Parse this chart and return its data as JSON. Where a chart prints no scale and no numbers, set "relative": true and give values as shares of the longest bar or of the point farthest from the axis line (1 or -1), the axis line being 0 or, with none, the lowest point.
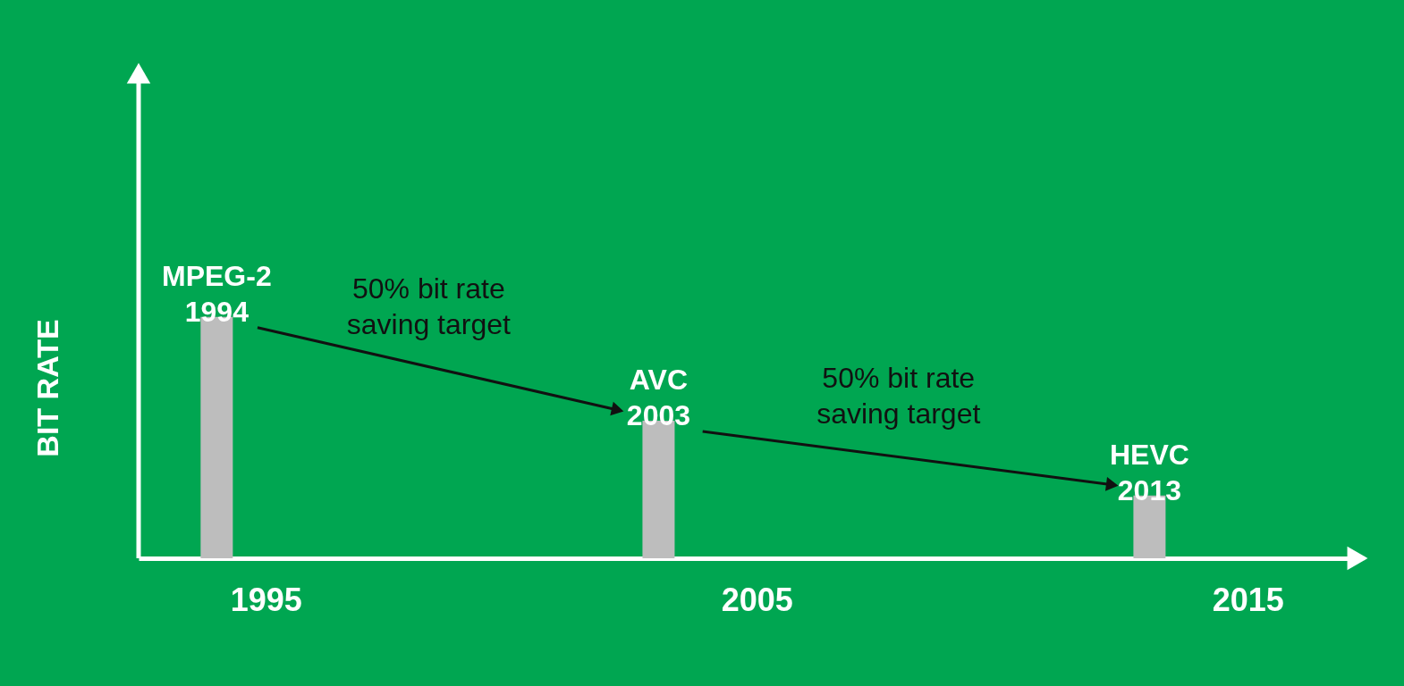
{
  "chart_data": {
    "type": "bar",
    "relative": true,
    "ylabel": "BIT RATE",
    "x": [
      1994,
      2003,
      2013
    ],
    "values": [
      1,
      0.57,
      0.26
    ],
    "color": "#bdbdbd",
    "xlim": [
      1992.5,
      2017
    ],
    "xticks": [
      1995,
      2005,
      2015
    ],
    "grid": false,
    "annotations": [
      {
        "text": "MPEG-2\n1994",
        "x": 1994,
        "y": 1
      },
      {
        "text": "AVC\n2003",
        "x": 2003,
        "y": 0.57
      },
      {
        "text": "HEVC\n2013",
        "x": 2013,
        "y": 0.26
      },
      "50% bit rate\nsaving target",
      "50% bit rate\nsaving target"
    ]
  }
}
